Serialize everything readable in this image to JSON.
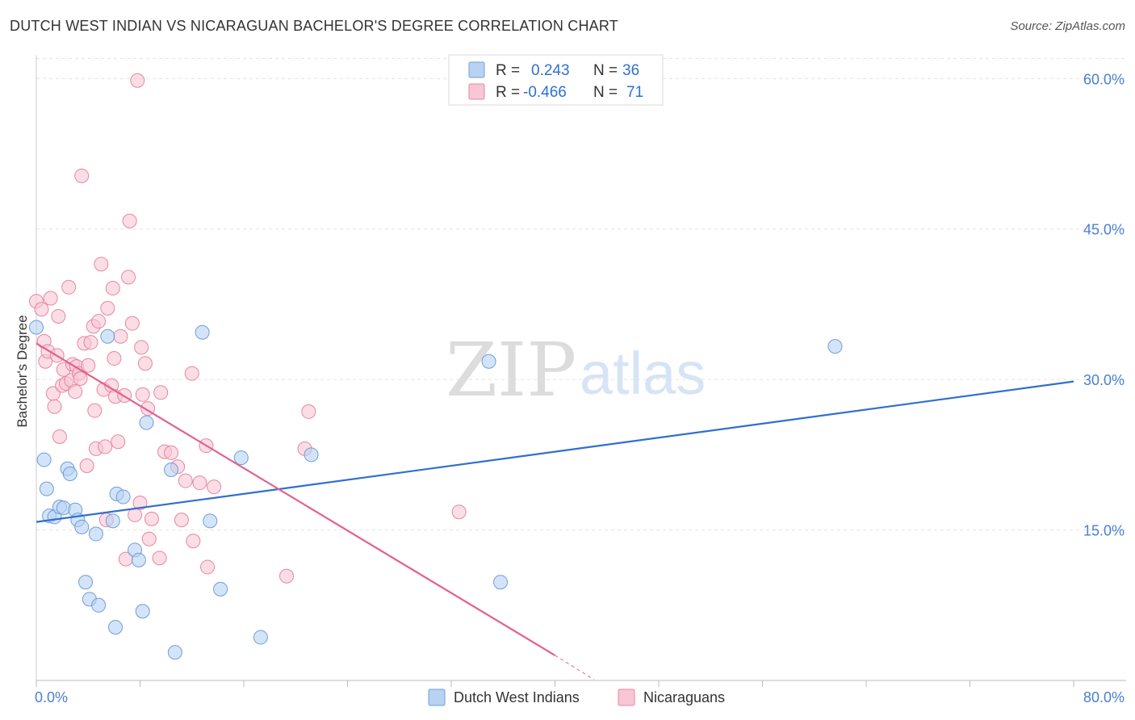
{
  "header": {
    "title": "DUTCH WEST INDIAN VS NICARAGUAN BACHELOR'S DEGREE CORRELATION CHART",
    "source": "Source: ZipAtlas.com"
  },
  "watermark": {
    "zip": "ZIP",
    "atlas": "atlas"
  },
  "colors": {
    "blue_fill": "#b8d2f4",
    "blue_stroke": "#6f9ed8",
    "blue_line": "#2f6fcf",
    "pink_fill": "#f8c6d6",
    "pink_stroke": "#e7879f",
    "pink_line": "#e0628e",
    "grid": "#e3e3e3",
    "axis_label": "#4a7fd0"
  },
  "chart_data": {
    "type": "scatter",
    "title": "DUTCH WEST INDIAN VS NICARAGUAN BACHELOR'S DEGREE CORRELATION CHART",
    "xlabel": "",
    "ylabel": "Bachelor's Degree",
    "xlim": [
      0,
      80
    ],
    "ylim": [
      0,
      63
    ],
    "x_tick_labels": [
      "0.0%",
      "80.0%"
    ],
    "y_ticks": [
      15,
      30,
      45,
      60
    ],
    "y_tick_labels": [
      "15.0%",
      "30.0%",
      "45.0%",
      "60.0%"
    ],
    "grid": true,
    "legend": {
      "placement": "top-center",
      "entries": [
        {
          "r_label": "R =",
          "r_value": "0.243",
          "n_label": "N =",
          "n_value": "36"
        },
        {
          "r_label": "R =",
          "r_value": "-0.466",
          "n_label": "N =",
          "n_value": "71"
        }
      ]
    },
    "bottom_legend": [
      "Dutch West Indians",
      "Nicaraguans"
    ],
    "series": [
      {
        "name": "Dutch West Indians",
        "r": 0.243,
        "n": 36,
        "trend": {
          "x0": 0,
          "y0": 15.8,
          "x1": 80,
          "y1": 29.8
        },
        "points": [
          [
            0.0,
            35.2
          ],
          [
            0.6,
            22.0
          ],
          [
            0.8,
            19.1
          ],
          [
            1.0,
            16.4
          ],
          [
            1.4,
            16.3
          ],
          [
            1.8,
            17.3
          ],
          [
            2.1,
            17.2
          ],
          [
            2.4,
            21.1
          ],
          [
            2.6,
            20.6
          ],
          [
            3.0,
            17.0
          ],
          [
            3.2,
            16.0
          ],
          [
            3.5,
            15.3
          ],
          [
            3.8,
            9.8
          ],
          [
            4.1,
            8.1
          ],
          [
            4.6,
            14.6
          ],
          [
            4.8,
            7.5
          ],
          [
            5.5,
            34.3
          ],
          [
            5.9,
            15.9
          ],
          [
            6.1,
            5.3
          ],
          [
            6.2,
            18.6
          ],
          [
            6.7,
            18.3
          ],
          [
            7.6,
            13.0
          ],
          [
            7.9,
            12.0
          ],
          [
            8.2,
            6.9
          ],
          [
            8.5,
            25.7
          ],
          [
            10.4,
            21.0
          ],
          [
            10.7,
            2.8
          ],
          [
            12.8,
            34.7
          ],
          [
            13.4,
            15.9
          ],
          [
            14.2,
            9.1
          ],
          [
            15.8,
            22.2
          ],
          [
            17.3,
            4.3
          ],
          [
            21.2,
            22.5
          ],
          [
            34.9,
            31.8
          ],
          [
            35.8,
            9.8
          ],
          [
            61.6,
            33.3
          ]
        ]
      },
      {
        "name": "Nicaraguans",
        "r": -0.466,
        "n": 71,
        "trend": {
          "x0": 0,
          "y0": 33.6,
          "x1": 40,
          "y1": 2.5
        },
        "trend_dashed": {
          "x0": 40,
          "y0": 2.5,
          "x1": 43,
          "y1": 0.1
        },
        "points": [
          [
            0.0,
            37.8
          ],
          [
            0.4,
            37.0
          ],
          [
            0.6,
            33.8
          ],
          [
            0.7,
            31.8
          ],
          [
            0.9,
            32.8
          ],
          [
            1.1,
            38.1
          ],
          [
            1.3,
            28.6
          ],
          [
            1.4,
            27.3
          ],
          [
            1.6,
            32.4
          ],
          [
            1.7,
            36.3
          ],
          [
            1.8,
            24.3
          ],
          [
            2.0,
            29.4
          ],
          [
            2.1,
            31.0
          ],
          [
            2.3,
            29.6
          ],
          [
            2.5,
            39.2
          ],
          [
            2.7,
            29.9
          ],
          [
            2.8,
            31.5
          ],
          [
            3.0,
            28.8
          ],
          [
            3.1,
            31.3
          ],
          [
            3.3,
            30.6
          ],
          [
            3.4,
            30.1
          ],
          [
            3.5,
            50.3
          ],
          [
            3.7,
            33.6
          ],
          [
            3.9,
            21.4
          ],
          [
            4.0,
            31.4
          ],
          [
            4.2,
            33.7
          ],
          [
            4.4,
            35.3
          ],
          [
            4.5,
            26.9
          ],
          [
            4.6,
            23.1
          ],
          [
            4.8,
            35.8
          ],
          [
            5.0,
            41.5
          ],
          [
            5.2,
            29.0
          ],
          [
            5.3,
            23.3
          ],
          [
            5.4,
            16.0
          ],
          [
            5.5,
            37.1
          ],
          [
            5.8,
            29.4
          ],
          [
            5.9,
            39.1
          ],
          [
            6.0,
            32.1
          ],
          [
            6.1,
            28.3
          ],
          [
            6.3,
            23.8
          ],
          [
            6.5,
            34.3
          ],
          [
            6.8,
            28.4
          ],
          [
            6.9,
            12.1
          ],
          [
            7.1,
            40.2
          ],
          [
            7.2,
            45.8
          ],
          [
            7.4,
            35.6
          ],
          [
            7.6,
            16.5
          ],
          [
            7.8,
            59.8
          ],
          [
            8.0,
            17.7
          ],
          [
            8.1,
            33.2
          ],
          [
            8.2,
            28.5
          ],
          [
            8.4,
            31.6
          ],
          [
            8.6,
            27.1
          ],
          [
            8.7,
            14.1
          ],
          [
            8.9,
            16.1
          ],
          [
            9.5,
            12.2
          ],
          [
            9.6,
            28.7
          ],
          [
            9.9,
            22.8
          ],
          [
            10.4,
            22.7
          ],
          [
            10.9,
            21.3
          ],
          [
            11.2,
            16.0
          ],
          [
            11.5,
            19.9
          ],
          [
            12.0,
            30.6
          ],
          [
            12.1,
            13.9
          ],
          [
            12.6,
            19.7
          ],
          [
            13.1,
            23.4
          ],
          [
            13.2,
            11.3
          ],
          [
            13.7,
            19.3
          ],
          [
            19.3,
            10.4
          ],
          [
            20.7,
            23.1
          ],
          [
            21.0,
            26.8
          ],
          [
            32.6,
            16.8
          ]
        ]
      }
    ]
  }
}
